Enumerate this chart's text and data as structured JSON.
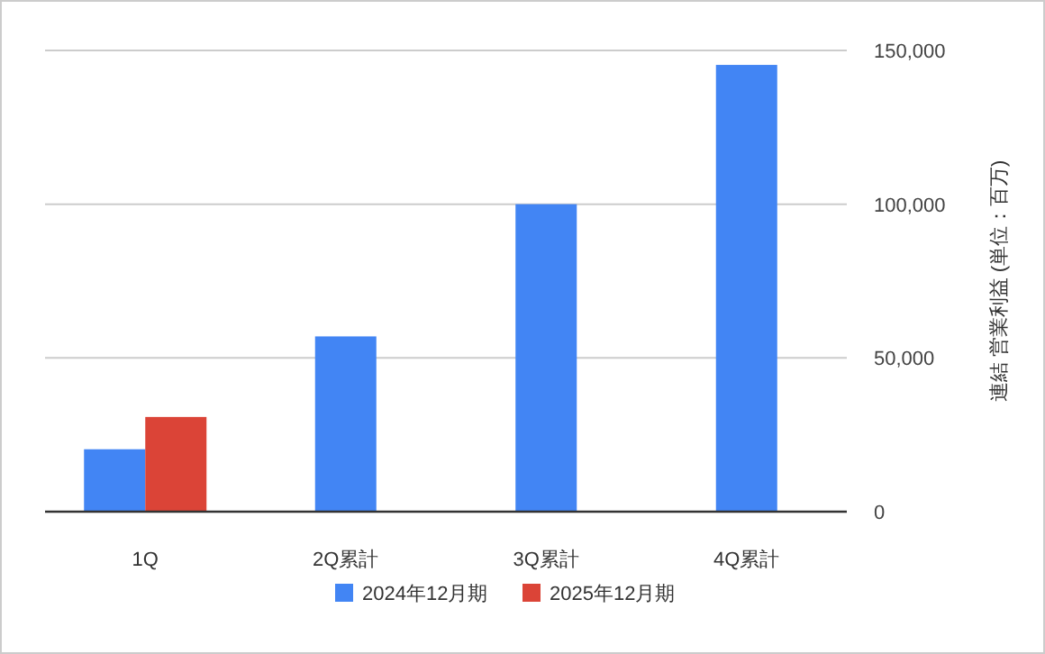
{
  "chart_data": {
    "type": "bar",
    "categories": [
      "1Q",
      "2Q累計",
      "3Q累計",
      "4Q累計"
    ],
    "series": [
      {
        "name": "2024年12月期",
        "color": "#4285f4",
        "values": [
          20300,
          57000,
          100000,
          145300
        ]
      },
      {
        "name": "2025年12月期",
        "color": "#db4437",
        "values": [
          30800,
          null,
          null,
          null
        ]
      }
    ],
    "ylabel": "連結 営業利益 (単位：百万)",
    "ylim": [
      0,
      150000
    ],
    "yticks": [
      {
        "value": 0,
        "label": "0"
      },
      {
        "value": 50000,
        "label": "50,000"
      },
      {
        "value": 100000,
        "label": "100,000"
      },
      {
        "value": 150000,
        "label": "150,000"
      }
    ],
    "grid": "y",
    "legend": "bottom"
  }
}
